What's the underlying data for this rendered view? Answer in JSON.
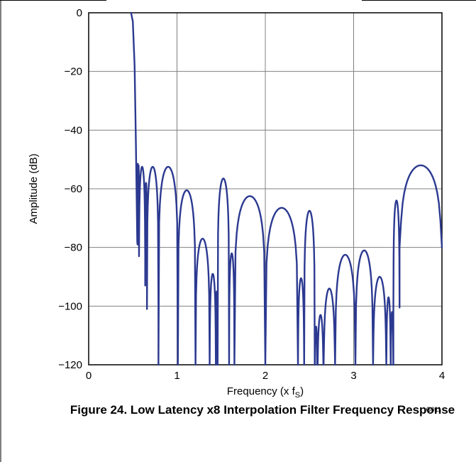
{
  "figure": {
    "caption": "Figure 24. Low Latency x8 Interpolation Filter Frequency Response",
    "code": "G011"
  },
  "chart_data": {
    "type": "line",
    "xlabel_text": "Frequency (x f",
    "xlabel_sub": "S",
    "xlabel_close": ")",
    "ylabel": "Amplitude (dB)",
    "xlim": [
      0,
      4
    ],
    "ylim": [
      -120,
      0
    ],
    "x_ticks": [
      0,
      1,
      2,
      3,
      4
    ],
    "y_ticks": [
      0,
      -20,
      -40,
      -60,
      -80,
      -100,
      -120
    ],
    "x_tick_labels": [
      "0",
      "1",
      "2",
      "3",
      "4"
    ],
    "y_tick_labels": [
      "0",
      "−20",
      "−40",
      "−60",
      "−80",
      "−100",
      "−120"
    ],
    "grid": true,
    "line_color": "#2b3990",
    "series": [
      {
        "name": "",
        "passband": [
          [
            0.48,
            0
          ],
          [
            0.5,
            -3
          ],
          [
            0.52,
            -18
          ],
          [
            0.535,
            -45
          ],
          [
            0.55,
            -78
          ]
        ],
        "lobes": [
          {
            "x0": 0.553,
            "x1": 0.56,
            "peak": -51.5,
            "null": -79
          },
          {
            "x0": 0.56,
            "x1": 0.57,
            "peak": -52,
            "null": -79
          },
          {
            "x0": 0.57,
            "x1": 0.64,
            "peak": -52.5,
            "null": -83
          },
          {
            "x0": 0.64,
            "x1": 0.66,
            "peak": -58,
            "null": -93
          },
          {
            "x0": 0.66,
            "x1": 0.79,
            "peak": -52.5,
            "null": -101
          },
          {
            "x0": 0.79,
            "x1": 1.01,
            "peak": -52.5,
            "null": -120
          },
          {
            "x0": 1.01,
            "x1": 1.21,
            "peak": -60.5,
            "null": -120
          },
          {
            "x0": 1.21,
            "x1": 1.37,
            "peak": -77,
            "null": -120
          },
          {
            "x0": 1.37,
            "x1": 1.44,
            "peak": -89,
            "null": -120
          },
          {
            "x0": 1.44,
            "x1": 1.46,
            "peak": -95,
            "null": -120
          },
          {
            "x0": 1.46,
            "x1": 1.59,
            "peak": -56.5,
            "null": -120
          },
          {
            "x0": 1.59,
            "x1": 1.65,
            "peak": -82,
            "null": -120
          },
          {
            "x0": 1.65,
            "x1": 2.0,
            "peak": -62.5,
            "null": -120
          },
          {
            "x0": 2.0,
            "x1": 2.37,
            "peak": -66.5,
            "null": -120
          },
          {
            "x0": 2.37,
            "x1": 2.44,
            "peak": -90.5,
            "null": -120
          },
          {
            "x0": 2.44,
            "x1": 2.56,
            "peak": -67.5,
            "null": -120
          },
          {
            "x0": 2.56,
            "x1": 2.59,
            "peak": -107,
            "null": -120
          },
          {
            "x0": 2.59,
            "x1": 2.66,
            "peak": -103,
            "null": -120
          },
          {
            "x0": 2.66,
            "x1": 2.79,
            "peak": -94,
            "null": -120
          },
          {
            "x0": 2.79,
            "x1": 3.02,
            "peak": -82.5,
            "null": -120
          },
          {
            "x0": 3.02,
            "x1": 3.22,
            "peak": -81,
            "null": -120
          },
          {
            "x0": 3.22,
            "x1": 3.37,
            "peak": -90,
            "null": -120
          },
          {
            "x0": 3.37,
            "x1": 3.42,
            "peak": -97,
            "null": -120
          },
          {
            "x0": 3.42,
            "x1": 3.45,
            "peak": -102,
            "null": -120
          },
          {
            "x0": 3.45,
            "x1": 3.52,
            "peak": -64,
            "null": -100.5
          },
          {
            "x0": 3.52,
            "x1": 4.0,
            "peak": -52,
            "null": -80
          }
        ]
      }
    ]
  }
}
